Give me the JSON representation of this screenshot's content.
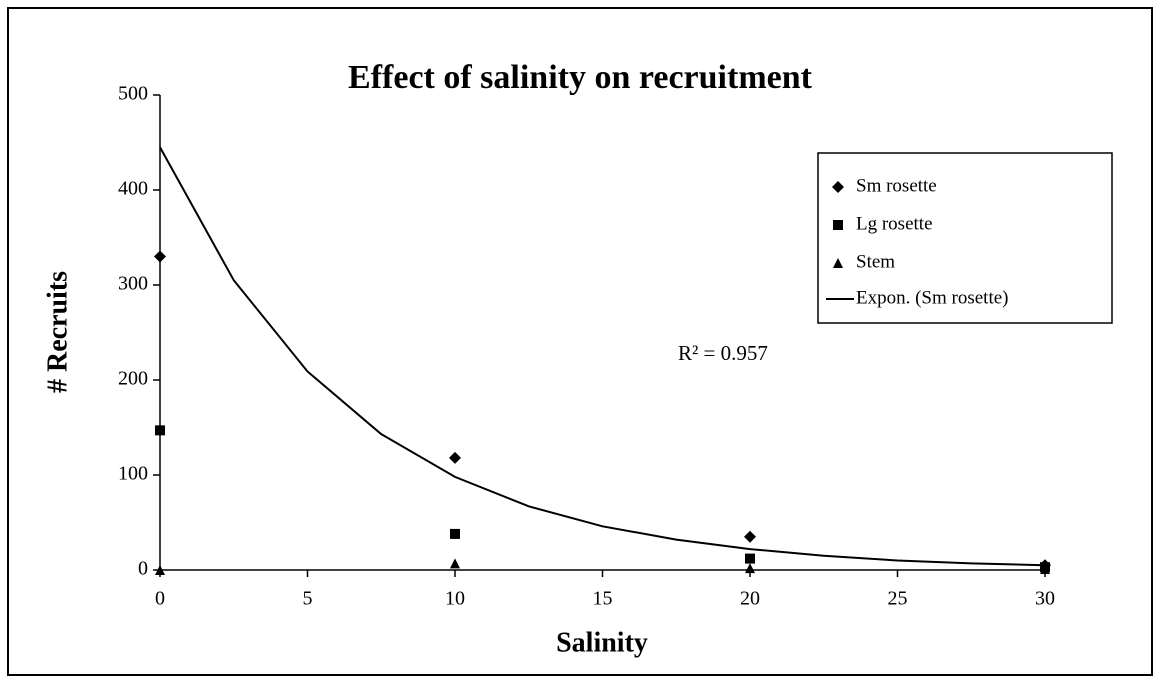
{
  "chart_data": {
    "type": "scatter",
    "title": "Effect of salinity on recruitment",
    "xlabel": "Salinity",
    "ylabel": "# Recruits",
    "x": [
      0,
      10,
      20,
      30
    ],
    "series": [
      {
        "name": "Sm rosette",
        "color": "#000000",
        "marker": "diamond",
        "values": [
          330,
          118,
          35,
          5
        ]
      },
      {
        "name": "Lg rosette",
        "color": "#000000",
        "marker": "square",
        "values": [
          147,
          38,
          12,
          3
        ]
      },
      {
        "name": "Stem",
        "color": "#000000",
        "marker": "triangle",
        "values": [
          0,
          7,
          2,
          1
        ]
      }
    ],
    "trendline": {
      "name": "Expon. (Sm rosette)",
      "color": "#000000",
      "x": [
        0,
        2.5,
        5,
        7.5,
        10,
        12.5,
        15,
        17.5,
        20,
        22.5,
        25,
        27.5,
        30
      ],
      "values": [
        445,
        305,
        209,
        143,
        98,
        67,
        46,
        32,
        22,
        15,
        10,
        7,
        5
      ]
    },
    "annotation": "R² = 0.957",
    "xlim": [
      0,
      30
    ],
    "xticks": [
      0,
      5,
      10,
      15,
      20,
      25,
      30
    ],
    "ylim": [
      0,
      500
    ],
    "yticks": [
      0,
      100,
      200,
      300,
      400,
      500
    ],
    "grid": false,
    "legend": "right"
  }
}
